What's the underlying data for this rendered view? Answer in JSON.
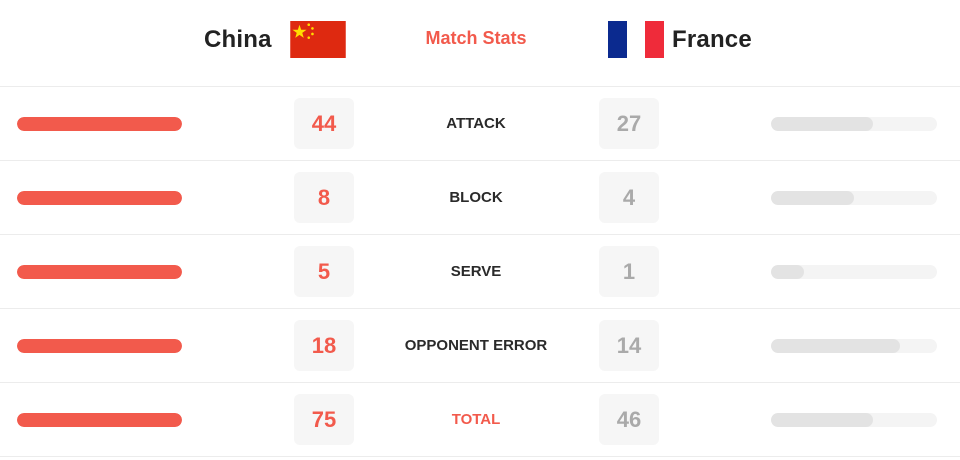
{
  "header": {
    "home_team": "China",
    "away_team": "France",
    "title": "Match Stats",
    "accent_color": "#f25a4c",
    "home_flag": "china-flag",
    "away_flag": "france-flag"
  },
  "stats": [
    {
      "label": "ATTACK",
      "home": 44,
      "away": 27
    },
    {
      "label": "BLOCK",
      "home": 8,
      "away": 4
    },
    {
      "label": "SERVE",
      "home": 5,
      "away": 1
    },
    {
      "label": "OPPONENT ERROR",
      "home": 18,
      "away": 14
    },
    {
      "label": "TOTAL",
      "home": 75,
      "away": 46
    }
  ],
  "colors": {
    "home_bar": "#f25a4c",
    "away_bar": "#e3e3e3",
    "away_value": "#aaaaaa"
  }
}
